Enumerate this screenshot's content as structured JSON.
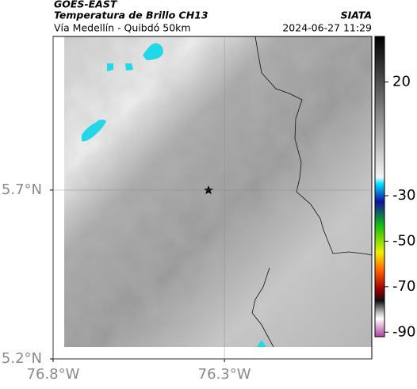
{
  "header": {
    "source": "GOES-EAST",
    "product": "Temperatura de Brillo CH13",
    "org": "SIATA",
    "route": "Vía Medellín - Quibdó 50km",
    "timestamp": "2024-06-27 11:29"
  },
  "map": {
    "xlim": [
      -76.8,
      -75.87
    ],
    "ylim": [
      5.2,
      6.155
    ],
    "xticks": [
      {
        "value": -76.8,
        "label": "76.8°W"
      },
      {
        "value": -76.3,
        "label": "76.3°W"
      }
    ],
    "yticks": [
      {
        "value": 5.7,
        "label": "5.7°N"
      },
      {
        "value": 5.2,
        "label": "5.2°N"
      }
    ]
  },
  "colorbar": {
    "lim": [
      40,
      -92
    ],
    "ticks": [
      20,
      -30,
      -50,
      -70,
      -90
    ]
  }
}
